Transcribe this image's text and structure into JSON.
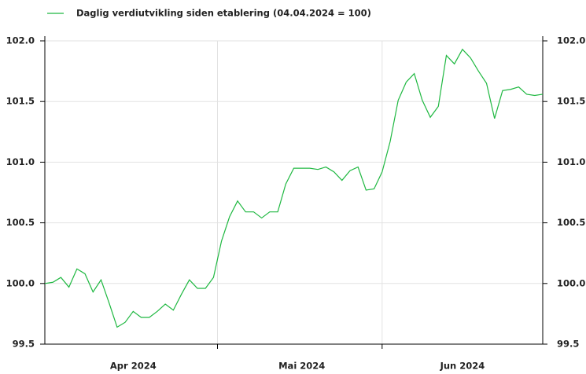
{
  "chart_data": {
    "type": "line",
    "categories": [
      null,
      null,
      null,
      null,
      null,
      null,
      null,
      null,
      null,
      null,
      null,
      "Apr 2024",
      null,
      null,
      null,
      null,
      null,
      null,
      null,
      null,
      null,
      null,
      null,
      null,
      null,
      null,
      null,
      null,
      null,
      null,
      null,
      null,
      "Mai 2024",
      null,
      null,
      null,
      null,
      null,
      null,
      null,
      null,
      null,
      null,
      null,
      null,
      null,
      null,
      null,
      null,
      null,
      null,
      null,
      "Jun 2024",
      null,
      null,
      null,
      null,
      null,
      null,
      null,
      null,
      null,
      null
    ],
    "series": [
      {
        "name": "Daglig verdiutvikling siden etablering (04.04.2024 = 100)",
        "color": "#1fb841",
        "values": [
          100.0,
          100.01,
          100.05,
          99.97,
          100.12,
          100.08,
          99.93,
          100.03,
          99.84,
          99.64,
          99.68,
          99.77,
          99.72,
          99.72,
          99.77,
          99.83,
          99.78,
          99.91,
          100.03,
          99.96,
          99.96,
          100.05,
          100.35,
          100.55,
          100.68,
          100.59,
          100.59,
          100.54,
          100.59,
          100.59,
          100.82,
          100.95,
          100.95,
          100.95,
          100.94,
          100.96,
          100.92,
          100.85,
          100.93,
          100.96,
          100.77,
          100.78,
          100.92,
          101.17,
          101.51,
          101.66,
          101.73,
          101.51,
          101.37,
          101.46,
          101.88,
          101.81,
          101.93,
          101.86,
          101.75,
          101.65,
          101.36,
          101.59,
          101.6,
          101.62,
          101.56,
          101.55,
          101.56
        ]
      }
    ],
    "ylim": [
      99.5,
      102
    ],
    "yticks": [
      99.5,
      {
        "value": 100,
        "label": "100.0"
      },
      100.5,
      {
        "value": 101,
        "label": "101.0"
      },
      101.5,
      {
        "value": 102,
        "label": "102.0"
      }
    ],
    "grid": true,
    "legend": "top-left"
  }
}
